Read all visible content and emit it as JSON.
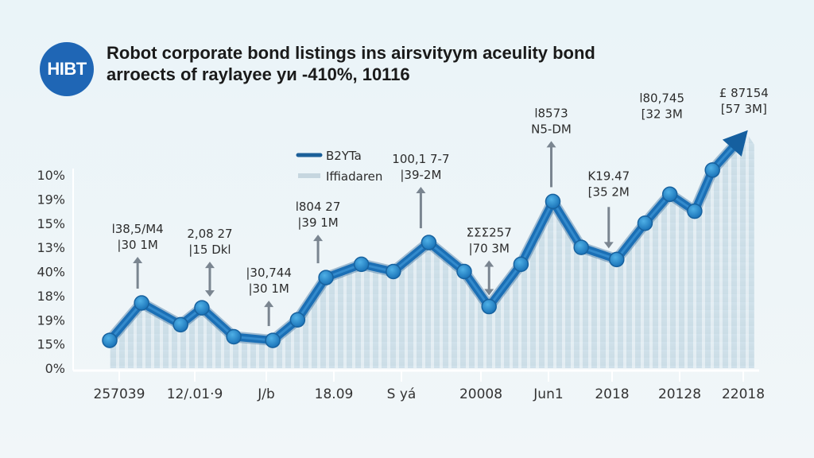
{
  "header": {
    "logo_text": "HIBT",
    "title_line1": "Robot corporate bond listings ins airsvityym aceulity bond",
    "title_line2": "arroects of raylayee уи -410%, 10116"
  },
  "colors": {
    "brand": "#1f66b5",
    "line": "#1b6fb5",
    "node": "#2a8ccc",
    "area": "#c9dde6",
    "arrow": "#7a8590"
  },
  "chart_data": {
    "type": "line",
    "title": "Robot corporate bond listings ins airsvityym aceulity bond arroects of raylayee уи -410%, 10116",
    "xlabel": "",
    "ylabel": "",
    "y_ticks": [
      "0%",
      "15%",
      "19%",
      "18%",
      "40%",
      "13%",
      "15%",
      "19%",
      "10%"
    ],
    "x_ticks": [
      "257039",
      "12∕.01·9",
      "J∕b",
      "18.09",
      "S  yá",
      "20008",
      "Jun1",
      "2018",
      "20128",
      "22018"
    ],
    "ylim": [
      0,
      8
    ],
    "y_unit_note": "values expressed in y-tick index units (0 = bottom tick, 8 = top tick)",
    "legend": {
      "placement": "top-center",
      "entries": [
        {
          "label": "B2YTa",
          "style": "line"
        },
        {
          "label": "Iffiadaren",
          "style": "area"
        }
      ]
    },
    "series": [
      {
        "name": "B2YTa",
        "type": "line",
        "x_index": [
          0,
          0.45,
          1.0,
          1.3,
          1.75,
          2.3,
          2.65,
          3.05,
          3.55,
          4.0,
          4.5,
          5.0,
          5.35,
          5.8,
          6.25,
          6.65,
          7.15,
          7.55,
          7.9,
          8.25,
          8.5,
          9.0
        ],
        "values": [
          1.15,
          2.7,
          1.8,
          2.5,
          1.3,
          1.15,
          2.0,
          3.75,
          4.3,
          4.0,
          5.2,
          4.0,
          2.55,
          4.3,
          6.9,
          5.0,
          4.5,
          6.0,
          7.2,
          6.5,
          8.2,
          9.85
        ],
        "end_marker": "arrow"
      },
      {
        "name": "Iffiadaren",
        "type": "area",
        "follows": "B2YTa"
      }
    ],
    "annotations": [
      {
        "line1": "l38,5∕M4",
        "line2": "|30 1M",
        "arrow": "up",
        "point_index": 1
      },
      {
        "line1": "2,08 27",
        "line2": "|15 Dkl",
        "arrow": "both",
        "point_index": 3
      },
      {
        "line1": "|30,744",
        "line2": "|30 1M",
        "arrow": "up",
        "point_index": 5
      },
      {
        "line1": "l804 27",
        "line2": "|39 1M",
        "arrow": "up",
        "point_index": 7
      },
      {
        "line1": "100,1 7-7",
        "line2": "|39-2M",
        "arrow": "up",
        "point_index": 10
      },
      {
        "line1": "ΣΣΣ257",
        "line2": "|70 3M",
        "arrow": "both",
        "point_index": 12
      },
      {
        "line1": "l8573",
        "line2": "N5-DM",
        "arrow": "up",
        "point_index": 14
      },
      {
        "line1": "K19.47",
        "line2": "[35 2M",
        "arrow": "down",
        "point_index": 16
      },
      {
        "line1": "l80,745",
        "line2": "[32 3M",
        "arrow": "none",
        "point_index": 18
      },
      {
        "line1": "£ 87154",
        "line2": "[57 3M]",
        "arrow": "none",
        "point_index": 21
      }
    ],
    "grid": false
  }
}
